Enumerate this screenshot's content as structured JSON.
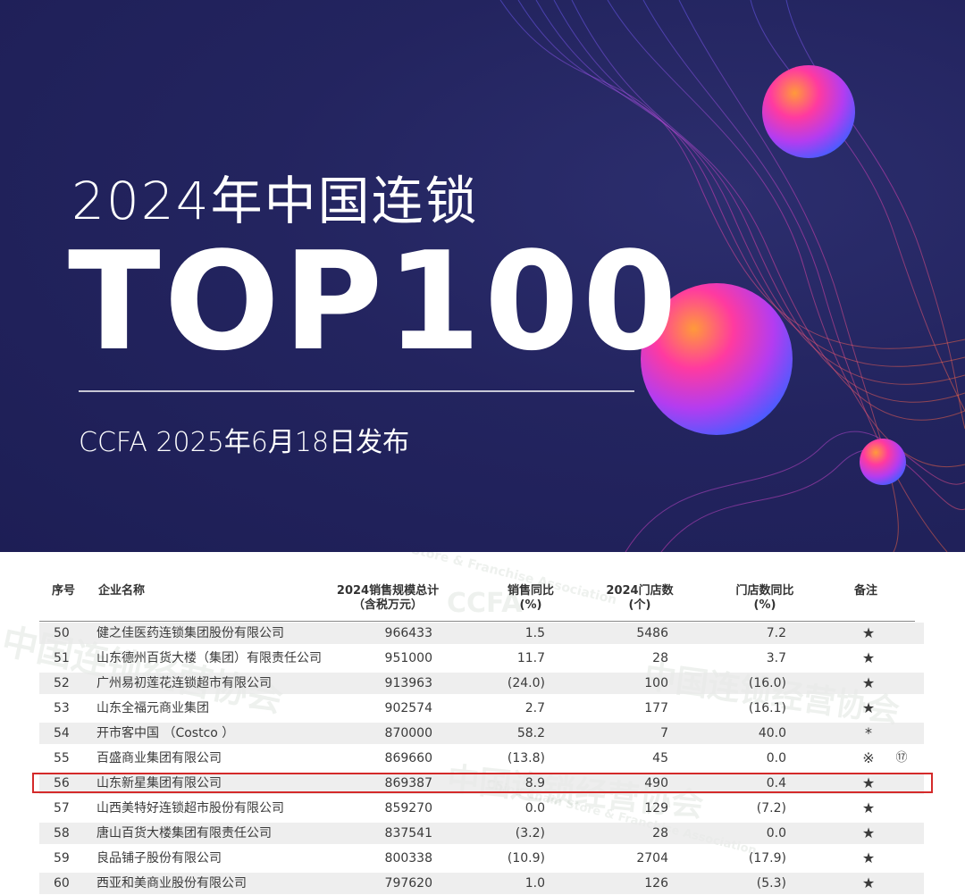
{
  "banner": {
    "subtitle": "2024年中国连锁",
    "title": "TOP100",
    "publish_line": "CCFA 2025年6月18日发布"
  },
  "watermark": {
    "cn": "中国连锁经营协会",
    "en": "China Chain Store & Franchise Association",
    "logo": "CCFA"
  },
  "table": {
    "headers": {
      "rank": "序号",
      "name": "企业名称",
      "sales_l1": "2024销售规模总计",
      "sales_l2": "（含税万元）",
      "yoy_l1": "销售同比",
      "yoy_l2": "(%)",
      "stores_l1": "2024门店数",
      "stores_l2": "(个)",
      "stores_yoy_l1": "门店数同比",
      "stores_yoy_l2": "(%)",
      "note": "备注"
    },
    "rows": [
      {
        "rank": "50",
        "name": "健之佳医药连锁集团股份有限公司",
        "sales": "966433",
        "yoy": "1.5",
        "stores": "5486",
        "stores_yoy": "7.2",
        "note": "★",
        "mark": ""
      },
      {
        "rank": "51",
        "name": "山东德州百货大楼（集团）有限责任公司",
        "sales": "951000",
        "yoy": "11.7",
        "stores": "28",
        "stores_yoy": "3.7",
        "note": "★",
        "mark": ""
      },
      {
        "rank": "52",
        "name": "广州易初莲花连锁超市有限公司",
        "sales": "913963",
        "yoy": "(24.0)",
        "stores": "100",
        "stores_yoy": "(16.0)",
        "note": "★",
        "mark": ""
      },
      {
        "rank": "53",
        "name": "山东全福元商业集团",
        "sales": "902574",
        "yoy": "2.7",
        "stores": "177",
        "stores_yoy": "(16.1)",
        "note": "★",
        "mark": ""
      },
      {
        "rank": "54",
        "name": "开市客中国 （Costco ）",
        "sales": "870000",
        "yoy": "58.2",
        "stores": "7",
        "stores_yoy": "40.0",
        "note": "*",
        "mark": ""
      },
      {
        "rank": "55",
        "name": "百盛商业集团有限公司",
        "sales": "869660",
        "yoy": "(13.8)",
        "stores": "45",
        "stores_yoy": "0.0",
        "note": "※",
        "mark": "⑰"
      },
      {
        "rank": "56",
        "name": "山东新星集团有限公司",
        "sales": "869387",
        "yoy": "8.9",
        "stores": "490",
        "stores_yoy": "0.4",
        "note": "★",
        "mark": ""
      },
      {
        "rank": "57",
        "name": "山西美特好连锁超市股份有限公司",
        "sales": "859270",
        "yoy": "0.0",
        "stores": "129",
        "stores_yoy": "(7.2)",
        "note": "★",
        "mark": ""
      },
      {
        "rank": "58",
        "name": "唐山百货大楼集团有限责任公司",
        "sales": "837541",
        "yoy": "(3.2)",
        "stores": "28",
        "stores_yoy": "0.0",
        "note": "★",
        "mark": ""
      },
      {
        "rank": "59",
        "name": "良品铺子股份有限公司",
        "sales": "800338",
        "yoy": "(10.9)",
        "stores": "2704",
        "stores_yoy": "(17.9)",
        "note": "★",
        "mark": ""
      },
      {
        "rank": "60",
        "name": "西亚和美商业股份有限公司",
        "sales": "797620",
        "yoy": "1.0",
        "stores": "126",
        "stores_yoy": "(5.3)",
        "note": "★",
        "mark": ""
      }
    ],
    "highlighted_rank": "56",
    "highlight_color": "#d42a2a"
  },
  "colors": {
    "banner_bg": "#22235e",
    "sphere_gradient": [
      "#ff8a3c",
      "#ff2fa0",
      "#9b3cff",
      "#3b6bff"
    ]
  }
}
